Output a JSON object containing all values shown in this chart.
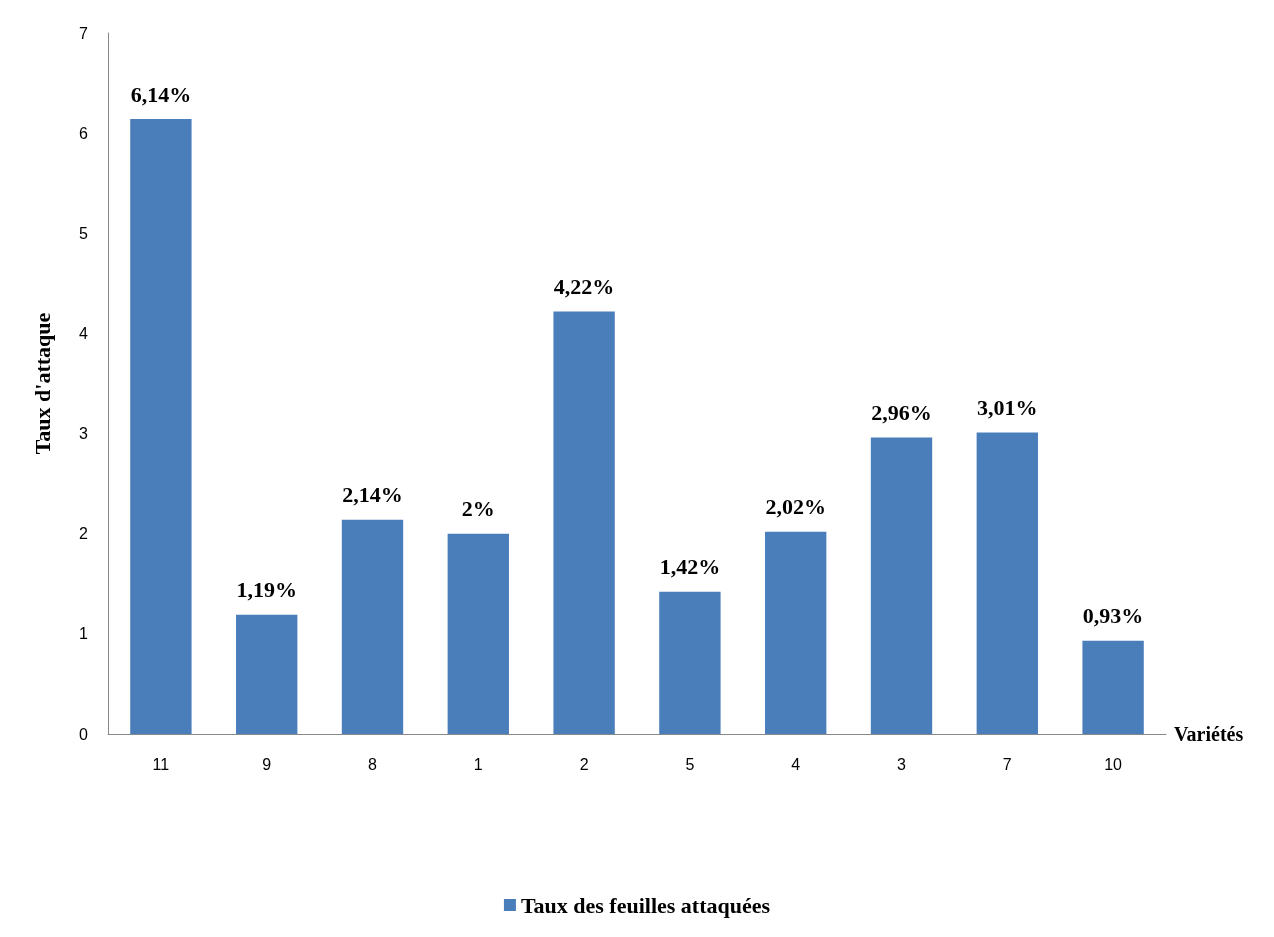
{
  "chart_data": {
    "type": "bar",
    "xlabel": "Variétés",
    "ylabel": "Taux d'attaque",
    "categories": [
      "11",
      "9",
      "8",
      "1",
      "2",
      "5",
      "4",
      "3",
      "7",
      "10"
    ],
    "series": [
      {
        "name": "Taux des feuilles attaquées",
        "color": "#4a7ebb",
        "values": [
          6.14,
          1.19,
          2.14,
          2,
          4.22,
          1.42,
          2.02,
          2.96,
          3.01,
          0.93
        ],
        "value_labels": [
          "6,14%",
          "1,19%",
          "2,14%",
          "2%",
          "4,22%",
          "1,42%",
          "2,02%",
          "2,96%",
          "3,01%",
          "0,93%"
        ]
      }
    ],
    "ylim": [
      0,
      7
    ],
    "yticks": [
      0,
      1,
      2,
      3,
      4,
      5,
      6,
      7
    ],
    "grid": false,
    "legend": "bottom"
  }
}
